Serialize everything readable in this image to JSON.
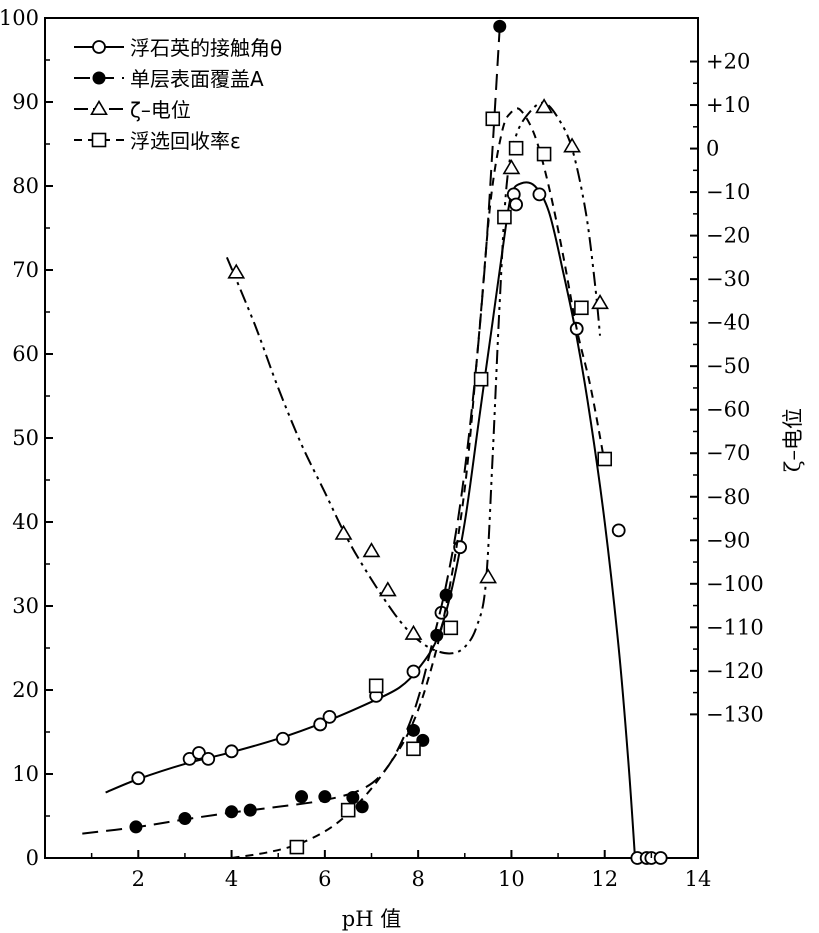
{
  "chart_data": {
    "type": "line",
    "xlabel": "pH 值",
    "ylabel": "",
    "y2label": "ζ–电位",
    "xlim": [
      0,
      14
    ],
    "ylim": [
      0,
      100
    ],
    "y2lim": [
      -163,
      30
    ],
    "xticks": [
      "2",
      "4",
      "6",
      "8",
      "10",
      "12",
      "14"
    ],
    "xtick_values": [
      2,
      4,
      6,
      8,
      10,
      12,
      14
    ],
    "yticks": [
      "0",
      "10",
      "20",
      "30",
      "40",
      "50",
      "60",
      "70",
      "80",
      "90",
      "100"
    ],
    "ytick_values": [
      0,
      10,
      20,
      30,
      40,
      50,
      60,
      70,
      80,
      90,
      100
    ],
    "y2ticks": [
      "+20",
      "+10",
      "0",
      "−10",
      "−20",
      "−30",
      "−40",
      "−50",
      "−60",
      "−70",
      "−80",
      "−90",
      "−100",
      "−110",
      "−120",
      "−130"
    ],
    "y2tick_values": [
      20,
      10,
      0,
      -10,
      -20,
      -30,
      -40,
      -50,
      -60,
      -70,
      -80,
      -90,
      -100,
      -110,
      -120,
      -130
    ],
    "grid": false,
    "legend_position": "top-left",
    "series": [
      {
        "name": "浮石英的接触角θ",
        "axis": "left",
        "marker": "open-circle",
        "dash": "solid",
        "points": [
          [
            2.0,
            9.5
          ],
          [
            3.1,
            11.8
          ],
          [
            3.3,
            12.5
          ],
          [
            3.5,
            11.8
          ],
          [
            4.0,
            12.7
          ],
          [
            5.1,
            14.2
          ],
          [
            5.9,
            15.9
          ],
          [
            6.1,
            16.8
          ],
          [
            7.1,
            19.3
          ],
          [
            7.9,
            22.2
          ],
          [
            8.5,
            29.2
          ],
          [
            8.9,
            37.0
          ],
          [
            10.05,
            79.0
          ],
          [
            10.1,
            77.8
          ],
          [
            10.6,
            79.0
          ],
          [
            11.4,
            63.0
          ],
          [
            12.3,
            39.0
          ],
          [
            12.7,
            0.0
          ],
          [
            12.9,
            0.0
          ],
          [
            13.0,
            0.0
          ],
          [
            13.2,
            0.0
          ]
        ],
        "curve": [
          [
            1.3,
            7.8
          ],
          [
            2.0,
            9.4
          ],
          [
            3.0,
            11.2
          ],
          [
            4.0,
            12.6
          ],
          [
            5.0,
            14.2
          ],
          [
            6.0,
            16.2
          ],
          [
            7.0,
            18.6
          ],
          [
            7.6,
            20.3
          ],
          [
            8.0,
            22.5
          ],
          [
            8.4,
            26.0
          ],
          [
            8.7,
            31.5
          ],
          [
            9.0,
            40.0
          ],
          [
            9.3,
            52.0
          ],
          [
            9.6,
            64.0
          ],
          [
            9.85,
            74.0
          ],
          [
            10.0,
            79.0
          ],
          [
            10.2,
            80.3
          ],
          [
            10.5,
            80.0
          ],
          [
            10.8,
            77.0
          ],
          [
            11.1,
            70.0
          ],
          [
            11.4,
            62.0
          ],
          [
            11.7,
            52.0
          ],
          [
            12.0,
            40.0
          ],
          [
            12.3,
            25.0
          ],
          [
            12.5,
            12.0
          ],
          [
            12.65,
            0.0
          ]
        ]
      },
      {
        "name": "单层表面覆盖A",
        "axis": "left",
        "marker": "filled-circle",
        "dash": "long-dash",
        "points": [
          [
            1.95,
            3.7
          ],
          [
            3.0,
            4.7
          ],
          [
            4.0,
            5.5
          ],
          [
            4.4,
            5.7
          ],
          [
            5.5,
            7.3
          ],
          [
            6.0,
            7.3
          ],
          [
            6.6,
            7.2
          ],
          [
            6.8,
            6.1
          ],
          [
            7.9,
            15.2
          ],
          [
            8.1,
            14.0
          ],
          [
            8.4,
            26.5
          ],
          [
            8.6,
            31.3
          ],
          [
            9.75,
            99.0
          ]
        ],
        "curve": [
          [
            0.8,
            2.9
          ],
          [
            2.0,
            3.7
          ],
          [
            3.0,
            4.6
          ],
          [
            4.0,
            5.4
          ],
          [
            5.0,
            6.1
          ],
          [
            6.0,
            6.9
          ],
          [
            6.8,
            8.2
          ],
          [
            7.3,
            10.5
          ],
          [
            7.7,
            14.5
          ],
          [
            8.0,
            19.0
          ],
          [
            8.3,
            25.5
          ],
          [
            8.6,
            32.5
          ],
          [
            8.9,
            42.0
          ],
          [
            9.2,
            56.0
          ],
          [
            9.45,
            72.0
          ],
          [
            9.6,
            85.0
          ],
          [
            9.75,
            99.0
          ]
        ]
      },
      {
        "name": "ζ–电位",
        "axis": "right",
        "marker": "open-triangle",
        "dash": "dash-dot-dot",
        "points": [
          [
            4.1,
            -28.5
          ],
          [
            6.4,
            -88.5
          ],
          [
            7.0,
            -92.5
          ],
          [
            7.35,
            -101.5
          ],
          [
            7.9,
            -111.5
          ],
          [
            9.5,
            -98.5
          ],
          [
            10.0,
            -4.5
          ],
          [
            10.7,
            9.5
          ],
          [
            11.3,
            0.5
          ],
          [
            11.9,
            -35.5
          ]
        ],
        "curve": [
          [
            3.9,
            -25.0
          ],
          [
            4.5,
            -40.5
          ],
          [
            5.0,
            -55.0
          ],
          [
            5.5,
            -68.0
          ],
          [
            6.0,
            -79.0
          ],
          [
            6.5,
            -90.0
          ],
          [
            7.0,
            -99.0
          ],
          [
            7.5,
            -107.0
          ],
          [
            7.9,
            -112.0
          ],
          [
            8.3,
            -115.0
          ],
          [
            8.7,
            -116.0
          ],
          [
            9.0,
            -114.5
          ],
          [
            9.25,
            -110.0
          ],
          [
            9.45,
            -100.0
          ],
          [
            9.6,
            -70.0
          ],
          [
            9.75,
            -35.0
          ],
          [
            9.9,
            -8.0
          ],
          [
            10.1,
            3.0
          ],
          [
            10.4,
            8.5
          ],
          [
            10.7,
            10.5
          ],
          [
            11.0,
            7.0
          ],
          [
            11.3,
            0.0
          ],
          [
            11.6,
            -15.0
          ],
          [
            11.8,
            -32.0
          ],
          [
            11.9,
            -43.0
          ]
        ]
      },
      {
        "name": "浮选回收率ε",
        "axis": "left",
        "marker": "open-square",
        "dash": "short-dash",
        "points": [
          [
            5.4,
            1.3
          ],
          [
            6.5,
            5.7
          ],
          [
            7.1,
            20.5
          ],
          [
            7.9,
            13.0
          ],
          [
            8.7,
            27.4
          ],
          [
            9.35,
            57.0
          ],
          [
            9.6,
            88.0
          ],
          [
            9.85,
            76.3
          ],
          [
            10.1,
            84.5
          ],
          [
            10.7,
            83.8
          ],
          [
            11.5,
            65.5
          ],
          [
            12.0,
            47.5
          ]
        ],
        "curve": [
          [
            4.0,
            0.0
          ],
          [
            4.8,
            0.7
          ],
          [
            5.5,
            1.8
          ],
          [
            6.2,
            3.9
          ],
          [
            6.8,
            7.0
          ],
          [
            7.3,
            10.5
          ],
          [
            7.8,
            15.0
          ],
          [
            8.2,
            21.0
          ],
          [
            8.6,
            30.0
          ],
          [
            9.0,
            44.0
          ],
          [
            9.3,
            62.0
          ],
          [
            9.55,
            78.0
          ],
          [
            9.8,
            86.5
          ],
          [
            10.0,
            88.8
          ],
          [
            10.2,
            89.0
          ],
          [
            10.5,
            86.0
          ],
          [
            10.8,
            80.0
          ],
          [
            11.1,
            72.0
          ],
          [
            11.4,
            63.0
          ],
          [
            11.7,
            56.0
          ],
          [
            12.0,
            47.0
          ]
        ]
      }
    ]
  }
}
